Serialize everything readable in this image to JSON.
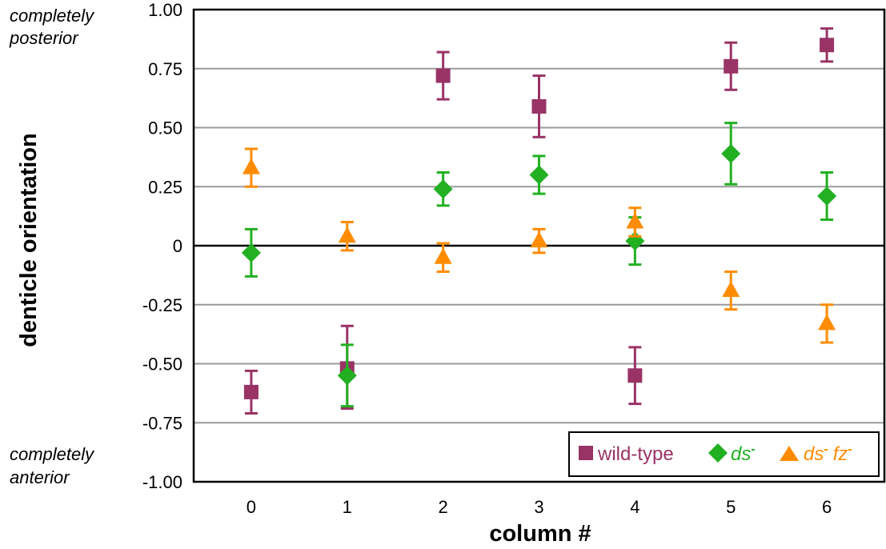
{
  "chart_data": {
    "type": "scatter",
    "xlabel": "column #",
    "ylabel": "denticle orientation",
    "x": [
      0,
      1,
      2,
      3,
      4,
      5,
      6
    ],
    "xlim": [
      -0.6,
      6.6
    ],
    "ylim": [
      -1.0,
      1.0
    ],
    "yticks": [
      1.0,
      0.75,
      0.5,
      0.25,
      0,
      -0.25,
      -0.5,
      -0.75,
      -1.0
    ],
    "ytick_labels": [
      "1.00",
      "0.75",
      "0.50",
      "0.25",
      "0",
      "-0.25",
      "-0.50",
      "-0.75",
      "-1.00"
    ],
    "xtick_labels": [
      "0",
      "1",
      "2",
      "3",
      "4",
      "5",
      "6"
    ],
    "grid": true,
    "legend_position": "bottom-right",
    "annotations": {
      "top_line1": "completely",
      "top_line2": "posterior",
      "bottom_line1": "completely",
      "bottom_line2": "anterior"
    },
    "series": [
      {
        "name": "wild-type",
        "marker": "square",
        "color": "#993366",
        "values": [
          -0.62,
          -0.52,
          0.72,
          0.59,
          -0.55,
          0.76,
          0.85
        ],
        "err_low": [
          0.09,
          0.17,
          0.1,
          0.13,
          0.12,
          0.1,
          0.07
        ],
        "err_high": [
          0.09,
          0.18,
          0.1,
          0.13,
          0.12,
          0.1,
          0.07
        ]
      },
      {
        "name": "ds",
        "name_sup": "-",
        "marker": "diamond",
        "color": "#22b022",
        "values": [
          -0.03,
          -0.55,
          0.24,
          0.3,
          0.02,
          0.39,
          0.21
        ],
        "err_low": [
          0.1,
          0.13,
          0.07,
          0.08,
          0.1,
          0.13,
          0.1
        ],
        "err_high": [
          0.1,
          0.13,
          0.07,
          0.08,
          0.1,
          0.13,
          0.1
        ]
      },
      {
        "name": "ds",
        "name_sup": "-",
        "name2": "fz",
        "name2_sup": "-",
        "marker": "triangle",
        "color": "#ff8c00",
        "values": [
          0.33,
          0.04,
          -0.05,
          0.02,
          0.1,
          -0.19,
          -0.33
        ],
        "err_low": [
          0.08,
          0.06,
          0.06,
          0.05,
          0.06,
          0.08,
          0.08
        ],
        "err_high": [
          0.08,
          0.06,
          0.06,
          0.05,
          0.06,
          0.08,
          0.08
        ]
      }
    ]
  }
}
